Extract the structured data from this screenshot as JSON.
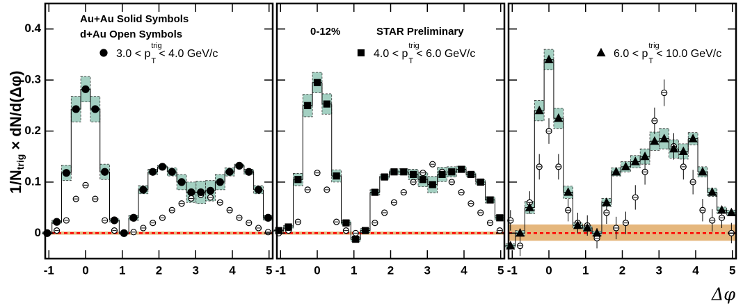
{
  "y_label": {
    "main": "1/N",
    "sub": "trig",
    "after": " × dN/d(Δφ)"
  },
  "x_label": "Δφ",
  "chart_data": [
    {
      "type": "scatter",
      "marker": "circle",
      "legend_lines": [
        "Au+Au Solid Symbols",
        "d+Au Open Symbols"
      ],
      "trigger_label": {
        "text": "3.0 < p",
        "sub": "T",
        "sup": "trig",
        "after": "< 4.0 GeV/c"
      },
      "xlim": [
        -1.1,
        5.1
      ],
      "xticks": [
        -1,
        0,
        1,
        2,
        3,
        4,
        5
      ],
      "ylim": [
        -0.05,
        0.45
      ],
      "yticks": [
        0,
        0.1,
        0.2,
        0.3,
        0.4
      ],
      "band": [
        -0.003,
        0.003
      ],
      "band_color": "#e0aa66",
      "x": [
        -1.047,
        -0.785,
        -0.524,
        -0.262,
        0,
        0.262,
        0.524,
        0.785,
        1.047,
        1.309,
        1.571,
        1.833,
        2.094,
        2.356,
        2.618,
        2.88,
        3.142,
        3.403,
        3.665,
        3.927,
        4.189,
        4.451,
        4.712,
        4.974
      ],
      "series": [
        {
          "filled": true,
          "color": "#000000",
          "sys_color": "#a4d0c2",
          "values": [
            0.0,
            0.022,
            0.118,
            0.243,
            0.282,
            0.243,
            0.12,
            0.025,
            0.0,
            0.03,
            0.085,
            0.12,
            0.13,
            0.12,
            0.1,
            0.08,
            0.08,
            0.083,
            0.1,
            0.12,
            0.132,
            0.12,
            0.085,
            0.03
          ],
          "sys": [
            0.002,
            0.003,
            0.015,
            0.025,
            0.025,
            0.025,
            0.015,
            0.003,
            0.002,
            0.005,
            0.008,
            0.005,
            0.003,
            0.008,
            0.015,
            0.02,
            0.022,
            0.02,
            0.015,
            0.008,
            0.003,
            0.005,
            0.008,
            0.005
          ]
        },
        {
          "filled": false,
          "color": "#000000",
          "values": [
            0.0,
            0.005,
            0.025,
            0.067,
            0.094,
            0.067,
            0.025,
            0.005,
            0.0,
            0.002,
            0.01,
            0.02,
            0.03,
            0.045,
            0.058,
            0.068,
            0.075,
            0.07,
            0.06,
            0.045,
            0.03,
            0.02,
            0.01,
            0.002
          ],
          "errors": [
            0.003,
            0.003,
            0.003,
            0.003,
            0.004,
            0.003,
            0.003,
            0.003,
            0.003,
            0.003,
            0.003,
            0.003,
            0.003,
            0.003,
            0.003,
            0.003,
            0.003,
            0.003,
            0.003,
            0.003,
            0.003,
            0.003,
            0.003,
            0.003
          ]
        }
      ]
    },
    {
      "type": "scatter",
      "marker": "square",
      "texts": [
        "0-12%",
        "STAR Preliminary"
      ],
      "trigger_label": {
        "text": "4.0 < p",
        "sub": "T",
        "sup": "trig",
        "after": "< 6.0 GeV/c"
      },
      "xlim": [
        -1.1,
        5.1
      ],
      "xticks": [
        -1,
        0,
        1,
        2,
        3,
        4,
        5
      ],
      "ylim": [
        -0.05,
        0.45
      ],
      "yticks": [
        0,
        0.1,
        0.2,
        0.3,
        0.4
      ],
      "band": [
        -0.003,
        0.003
      ],
      "band_color": "#e0aa66",
      "x": [
        -1.047,
        -0.785,
        -0.524,
        -0.262,
        0,
        0.262,
        0.524,
        0.785,
        1.047,
        1.309,
        1.571,
        1.833,
        2.094,
        2.356,
        2.618,
        2.88,
        3.142,
        3.403,
        3.665,
        3.927,
        4.189,
        4.451,
        4.712,
        4.974
      ],
      "series": [
        {
          "filled": true,
          "color": "#000000",
          "sys_color": "#a4d0c2",
          "values": [
            0.005,
            0.012,
            0.105,
            0.25,
            0.295,
            0.253,
            0.112,
            0.02,
            -0.012,
            0.005,
            0.08,
            0.11,
            0.12,
            0.12,
            0.115,
            0.105,
            0.095,
            0.115,
            0.12,
            0.125,
            0.115,
            0.1,
            0.065,
            0.03
          ],
          "sys": [
            0.002,
            0.003,
            0.012,
            0.022,
            0.02,
            0.02,
            0.012,
            0.004,
            0.004,
            0.004,
            0.005,
            0.004,
            0.004,
            0.006,
            0.01,
            0.014,
            0.016,
            0.014,
            0.01,
            0.006,
            0.004,
            0.005,
            0.006,
            0.005
          ]
        },
        {
          "filled": false,
          "color": "#000000",
          "values": [
            0.0,
            0.005,
            0.022,
            0.085,
            0.118,
            0.085,
            0.022,
            0.005,
            0.0,
            0.005,
            0.02,
            0.04,
            0.06,
            0.08,
            0.1,
            0.118,
            0.135,
            0.12,
            0.1,
            0.08,
            0.058,
            0.04,
            0.02,
            0.005
          ],
          "errors": [
            0.003,
            0.003,
            0.003,
            0.004,
            0.005,
            0.004,
            0.003,
            0.003,
            0.003,
            0.003,
            0.003,
            0.004,
            0.004,
            0.004,
            0.004,
            0.005,
            0.005,
            0.005,
            0.004,
            0.004,
            0.004,
            0.004,
            0.003,
            0.003
          ]
        }
      ]
    },
    {
      "type": "scatter",
      "marker": "triangle",
      "trigger_label": {
        "text": "6.0 < p",
        "sub": "T",
        "sup": "trig",
        "after": "< 10.0 GeV/c"
      },
      "xlim": [
        -1.1,
        5.1
      ],
      "xticks": [
        -1,
        0,
        1,
        2,
        3,
        4,
        5
      ],
      "ylim": [
        -0.05,
        0.45
      ],
      "yticks": [
        0,
        0.1,
        0.2,
        0.3,
        0.4
      ],
      "band": [
        -0.015,
        0.017
      ],
      "band_color": "#e0aa66",
      "x": [
        -1.047,
        -0.785,
        -0.524,
        -0.262,
        0,
        0.262,
        0.524,
        0.785,
        1.047,
        1.309,
        1.571,
        1.833,
        2.094,
        2.356,
        2.618,
        2.88,
        3.142,
        3.403,
        3.665,
        3.927,
        4.189,
        4.451,
        4.712,
        4.974
      ],
      "series": [
        {
          "filled": true,
          "color": "#000000",
          "sys_color": "#a4d0c2",
          "values": [
            -0.025,
            0.0,
            0.05,
            0.24,
            0.34,
            0.225,
            0.08,
            0.015,
            0.01,
            0.0,
            0.06,
            0.12,
            0.13,
            0.14,
            0.15,
            0.18,
            0.185,
            0.165,
            0.16,
            0.185,
            0.12,
            0.08,
            0.045,
            0.04
          ],
          "sys": [
            0.004,
            0.005,
            0.012,
            0.02,
            0.02,
            0.02,
            0.012,
            0.005,
            0.004,
            0.004,
            0.008,
            0.008,
            0.01,
            0.012,
            0.015,
            0.018,
            0.02,
            0.018,
            0.015,
            0.012,
            0.01,
            0.008,
            0.006,
            0.005
          ]
        },
        {
          "filled": false,
          "color": "#000000",
          "values": [
            0.025,
            -0.025,
            0.06,
            0.13,
            0.2,
            0.13,
            0.045,
            0.02,
            0.015,
            -0.01,
            0.04,
            0.01,
            0.02,
            0.07,
            0.12,
            0.22,
            0.275,
            0.17,
            0.13,
            0.1,
            0.045,
            0.025,
            0.03,
            0.0
          ],
          "errors": [
            0.02,
            0.02,
            0.022,
            0.025,
            0.025,
            0.025,
            0.022,
            0.02,
            0.02,
            0.02,
            0.022,
            0.022,
            0.022,
            0.024,
            0.025,
            0.026,
            0.026,
            0.026,
            0.025,
            0.024,
            0.022,
            0.022,
            0.02,
            0.02
          ]
        }
      ]
    }
  ]
}
